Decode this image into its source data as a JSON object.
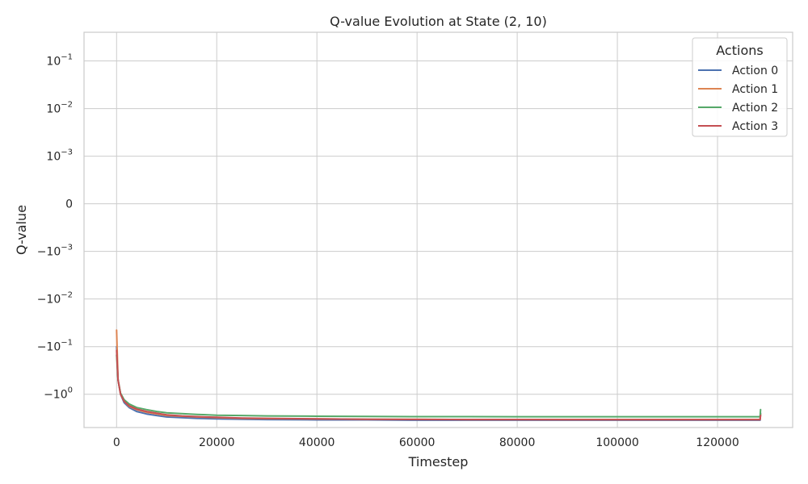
{
  "chart_data": {
    "type": "line",
    "title": "Q-value Evolution at State (2, 10)",
    "xlabel": "Timestep",
    "ylabel": "Q-value",
    "yscale": "symlog",
    "xlim": [
      -6500,
      135000
    ],
    "ylim": [
      -5.0,
      0.4
    ],
    "x_ticks": [
      0,
      20000,
      40000,
      60000,
      80000,
      100000,
      120000
    ],
    "x_tick_labels": [
      "0",
      "20000",
      "40000",
      "60000",
      "80000",
      "100000",
      "120000"
    ],
    "y_ticks": [
      0.1,
      0.01,
      0.001,
      0,
      -0.001,
      -0.01,
      -0.1,
      -1
    ],
    "y_tick_labels": [
      {
        "base": "10",
        "exp": "−1"
      },
      {
        "base": "10",
        "exp": "−2"
      },
      {
        "base": "10",
        "exp": "−3"
      },
      {
        "base": "0",
        "exp": ""
      },
      {
        "base": "−10",
        "exp": "−3"
      },
      {
        "base": "−10",
        "exp": "−2"
      },
      {
        "base": "−10",
        "exp": "−1"
      },
      {
        "base": "−10",
        "exp": "0"
      }
    ],
    "grid": true,
    "legend_title": "Actions",
    "legend_position": "top-right",
    "series": [
      {
        "name": "Action 0",
        "color": "#4c72b0",
        "x": [
          0,
          300,
          800,
          1500,
          2500,
          4000,
          6000,
          8000,
          10000,
          13000,
          16000,
          20000,
          25000,
          30000,
          40000,
          50000,
          60000,
          70000,
          80000,
          90000,
          100000,
          110000,
          120000,
          128500,
          128600
        ],
        "y": [
          -0.1,
          -0.5,
          -1.0,
          -1.5,
          -1.9,
          -2.3,
          -2.6,
          -2.8,
          -3.0,
          -3.1,
          -3.2,
          -3.3,
          -3.35,
          -3.4,
          -3.45,
          -3.45,
          -3.5,
          -3.5,
          -3.5,
          -3.5,
          -3.5,
          -3.5,
          -3.5,
          -3.5,
          -2.5
        ]
      },
      {
        "name": "Action 1",
        "color": "#dd8452",
        "x": [
          0,
          300,
          800,
          1500,
          2500,
          4000,
          6000,
          8000,
          10000,
          13000,
          16000,
          20000,
          25000,
          30000,
          40000,
          50000,
          60000,
          70000,
          80000,
          90000,
          100000,
          110000,
          120000,
          128500,
          128600
        ],
        "y": [
          -0.045,
          -0.5,
          -1.0,
          -1.4,
          -1.8,
          -2.1,
          -2.4,
          -2.6,
          -2.8,
          -2.9,
          -3.0,
          -3.1,
          -3.2,
          -3.25,
          -3.3,
          -3.35,
          -3.35,
          -3.4,
          -3.4,
          -3.4,
          -3.4,
          -3.4,
          -3.4,
          -3.4,
          -2.6
        ]
      },
      {
        "name": "Action 2",
        "color": "#55a868",
        "x": [
          0,
          300,
          800,
          1500,
          2500,
          4000,
          6000,
          8000,
          10000,
          13000,
          16000,
          20000,
          25000,
          30000,
          40000,
          50000,
          60000,
          70000,
          80000,
          90000,
          100000,
          110000,
          120000,
          128500,
          128600
        ],
        "y": [
          -0.15,
          -0.5,
          -0.95,
          -1.3,
          -1.6,
          -1.9,
          -2.1,
          -2.3,
          -2.45,
          -2.55,
          -2.65,
          -2.75,
          -2.8,
          -2.85,
          -2.9,
          -2.92,
          -2.95,
          -2.95,
          -2.97,
          -2.97,
          -2.97,
          -2.97,
          -2.97,
          -2.97,
          -2.1
        ]
      },
      {
        "name": "Action 3",
        "color": "#c44e52",
        "x": [
          0,
          300,
          800,
          1500,
          2500,
          4000,
          6000,
          8000,
          10000,
          13000,
          16000,
          20000,
          25000,
          30000,
          40000,
          50000,
          60000,
          70000,
          80000,
          90000,
          100000,
          110000,
          120000,
          128500,
          128600
        ],
        "y": [
          -0.12,
          -0.5,
          -1.0,
          -1.4,
          -1.75,
          -2.05,
          -2.3,
          -2.5,
          -2.7,
          -2.85,
          -2.95,
          -3.05,
          -3.15,
          -3.2,
          -3.3,
          -3.35,
          -3.38,
          -3.4,
          -3.4,
          -3.42,
          -3.42,
          -3.42,
          -3.42,
          -3.42,
          -2.8
        ]
      }
    ]
  }
}
